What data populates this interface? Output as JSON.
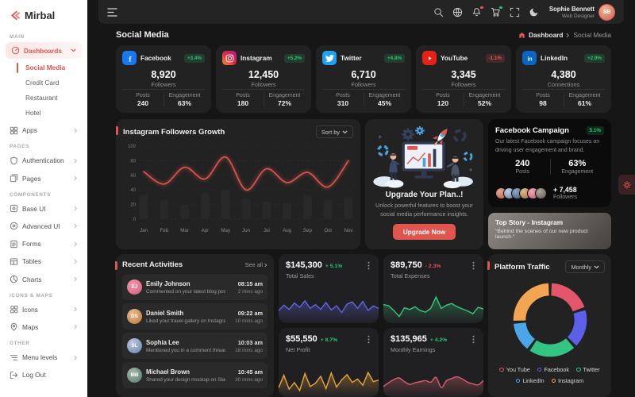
{
  "colors": {
    "accent": "#e0564f",
    "green": "#28c76f",
    "red": "#ea5455"
  },
  "sidebar": {
    "logo": "Mirbal",
    "sections": {
      "main": "MAIN",
      "pages": "PAGES",
      "components": "COMPONENTS",
      "icons_maps": "ICONS & MAPS",
      "other": "OTHER"
    },
    "items": {
      "dashboards": "Dashboards",
      "social_media": "Social Media",
      "credit_card": "Credit Card",
      "restaurant": "Restaurant",
      "hotel": "Hotel",
      "apps": "Apps",
      "authentication": "Authentication",
      "pages": "Pages",
      "base_ui": "Base UI",
      "advanced_ui": "Advanced UI",
      "forms": "Forms",
      "tables": "Tables",
      "charts": "Charts",
      "icons": "Icons",
      "maps": "Maps",
      "menu_levels": "Menu levels",
      "log_out": "Log Out"
    }
  },
  "header": {
    "user_name": "Sophie Bennett",
    "user_role": "Web Designer"
  },
  "page": {
    "title": "Social Media",
    "breadcrumb_home": "Dashboard",
    "breadcrumb_current": "Social Media"
  },
  "controls": {
    "sort_by": "Sort by",
    "monthly": "Monthly",
    "see_all": "See all"
  },
  "stats": [
    {
      "platform": "Facebook",
      "icon": "facebook-icon",
      "brand": "#1877f2",
      "badge": "+3.4%",
      "value": "8,920",
      "value_label": "Followers",
      "posts_label": "Posts",
      "posts": "240",
      "engagement_label": "Engagement",
      "engagement": "63%"
    },
    {
      "platform": "Instagram",
      "icon": "instagram-icon",
      "brand": "instagram-gradient",
      "badge": "+5.2%",
      "value": "12,450",
      "value_label": "Followers",
      "posts_label": "Posts",
      "posts": "180",
      "engagement_label": "Engagement",
      "engagement": "72%"
    },
    {
      "platform": "Twitter",
      "icon": "twitter-icon",
      "brand": "#1da1f2",
      "badge": "+4.8%",
      "value": "6,710",
      "value_label": "Followers",
      "posts_label": "Posts",
      "posts": "310",
      "engagement_label": "Engagement",
      "engagement": "45%"
    },
    {
      "platform": "YouTube",
      "icon": "youtube-icon",
      "brand": "#e62117",
      "badge": "-1.1%",
      "value": "3,345",
      "value_label": "Followers",
      "posts_label": "Posts",
      "posts": "120",
      "engagement_label": "Engagement",
      "engagement": "52%"
    },
    {
      "platform": "LinkedIn",
      "icon": "linkedin-icon",
      "brand": "#0a66c2",
      "badge": "+2.9%",
      "value": "4,380",
      "value_label": "Connections",
      "posts_label": "Posts",
      "posts": "98",
      "engagement_label": "Engagement",
      "engagement": "61%"
    }
  ],
  "upgrade": {
    "title": "Upgrade Your Plan..!",
    "text": "Unlock powerful features to boost your social media performance insights.",
    "button": "Upgrade Now"
  },
  "campaign": {
    "title": "Facebook Campaign",
    "badge": "5.1%",
    "text": "Our latest Facebook campaign focuses on driving user engagement and brand.",
    "posts_value": "240",
    "posts_label": "Posts",
    "engagement_value": "63%",
    "engagement_label": "Engagement",
    "followers_value": "+ 7,458",
    "followers_label": "Followers",
    "top_story_title": "Top Story - Instagram",
    "top_story_text": "\"Behind the scenes of our new product launch.\""
  },
  "activities": {
    "title": "Recent Activities",
    "items": [
      {
        "name": "Emily Johnson",
        "text": "Commented on your latest blog post",
        "time": "08:15 am",
        "ago": "2 mins ago"
      },
      {
        "name": "Daniel Smith",
        "text": "Liked your travel gallery on Instagram",
        "time": "09:22 am",
        "ago": "10 mins ago"
      },
      {
        "name": "Sophia Lee",
        "text": "Mentioned you in a comment thread",
        "time": "10:03 am",
        "ago": "18 mins ago"
      },
      {
        "name": "Michael Brown",
        "text": "Shared your design mockup on Slack",
        "time": "10:45 am",
        "ago": "30 mins ago"
      }
    ]
  },
  "chart_data": [
    {
      "type": "line",
      "title": "Instagram Followers Growth",
      "x": [
        "Jan",
        "Feb",
        "Mar",
        "Apr",
        "May",
        "Jun",
        "Jul",
        "Aug",
        "Sep",
        "Oct",
        "Nov"
      ],
      "values": [
        65,
        48,
        71,
        55,
        85,
        40,
        69,
        50,
        64,
        44,
        80
      ],
      "bars": [
        34,
        26,
        20,
        36,
        40,
        28,
        24,
        22,
        34,
        26,
        30
      ],
      "ylim": [
        0,
        100
      ],
      "yticks": [
        0,
        20,
        40,
        60,
        80,
        100
      ],
      "grid": true,
      "color": "#e0564f",
      "legend_position": "none"
    },
    {
      "type": "area",
      "title": "Total Sales",
      "value": "$145,300",
      "change": "+ 5.1%",
      "trend": "up",
      "color": "#6165e0",
      "values": [
        38,
        58,
        42,
        66,
        50,
        74,
        46,
        60,
        42,
        68,
        40,
        56,
        30,
        62,
        70,
        46,
        72,
        38,
        55,
        46
      ]
    },
    {
      "type": "area",
      "title": "Total Expenses",
      "value": "$89,750",
      "change": "- 2.3%",
      "trend": "down",
      "color": "#35c77c",
      "values": [
        60,
        56,
        38,
        16,
        48,
        42,
        52,
        38,
        32,
        46,
        88,
        46,
        58,
        64,
        52,
        44,
        36,
        26,
        50,
        44
      ]
    },
    {
      "type": "area",
      "title": "Net Profit",
      "value": "$55,550",
      "change": "+ 8.7%",
      "trend": "up",
      "color": "#e8a33d",
      "values": [
        25,
        72,
        20,
        45,
        15,
        78,
        30,
        42,
        68,
        22,
        80,
        28,
        55,
        74,
        45,
        58,
        35,
        82,
        48,
        54
      ]
    },
    {
      "type": "area",
      "title": "Monthly Earnings",
      "value": "$135,965",
      "change": "+ 4.2%",
      "trend": "up",
      "color": "#d4606c",
      "smooth": true,
      "values": [
        30,
        44,
        56,
        62,
        48,
        38,
        44,
        48,
        52,
        46,
        64,
        26,
        52,
        60,
        66,
        58,
        46,
        40,
        36,
        52
      ]
    },
    {
      "type": "pie",
      "title": "Platform Traffic",
      "period": "Monthly",
      "legend_position": "bottom",
      "labels": [
        "You Tube",
        "Facebook",
        "Twitter",
        "LinkedIn",
        "Instagram"
      ],
      "values": [
        20,
        18,
        22,
        14,
        26
      ],
      "colors": [
        "#e2556a",
        "#5c5fe8",
        "#33c481",
        "#4ba6e8",
        "#f2a654"
      ]
    }
  ],
  "icons": {
    "header": [
      "search-icon",
      "language-icon",
      "notification-bell-icon",
      "cart-icon",
      "fullscreen-icon",
      "moon-icon"
    ],
    "breadcrumb": "home-icon",
    "floating": "gear-icon"
  }
}
